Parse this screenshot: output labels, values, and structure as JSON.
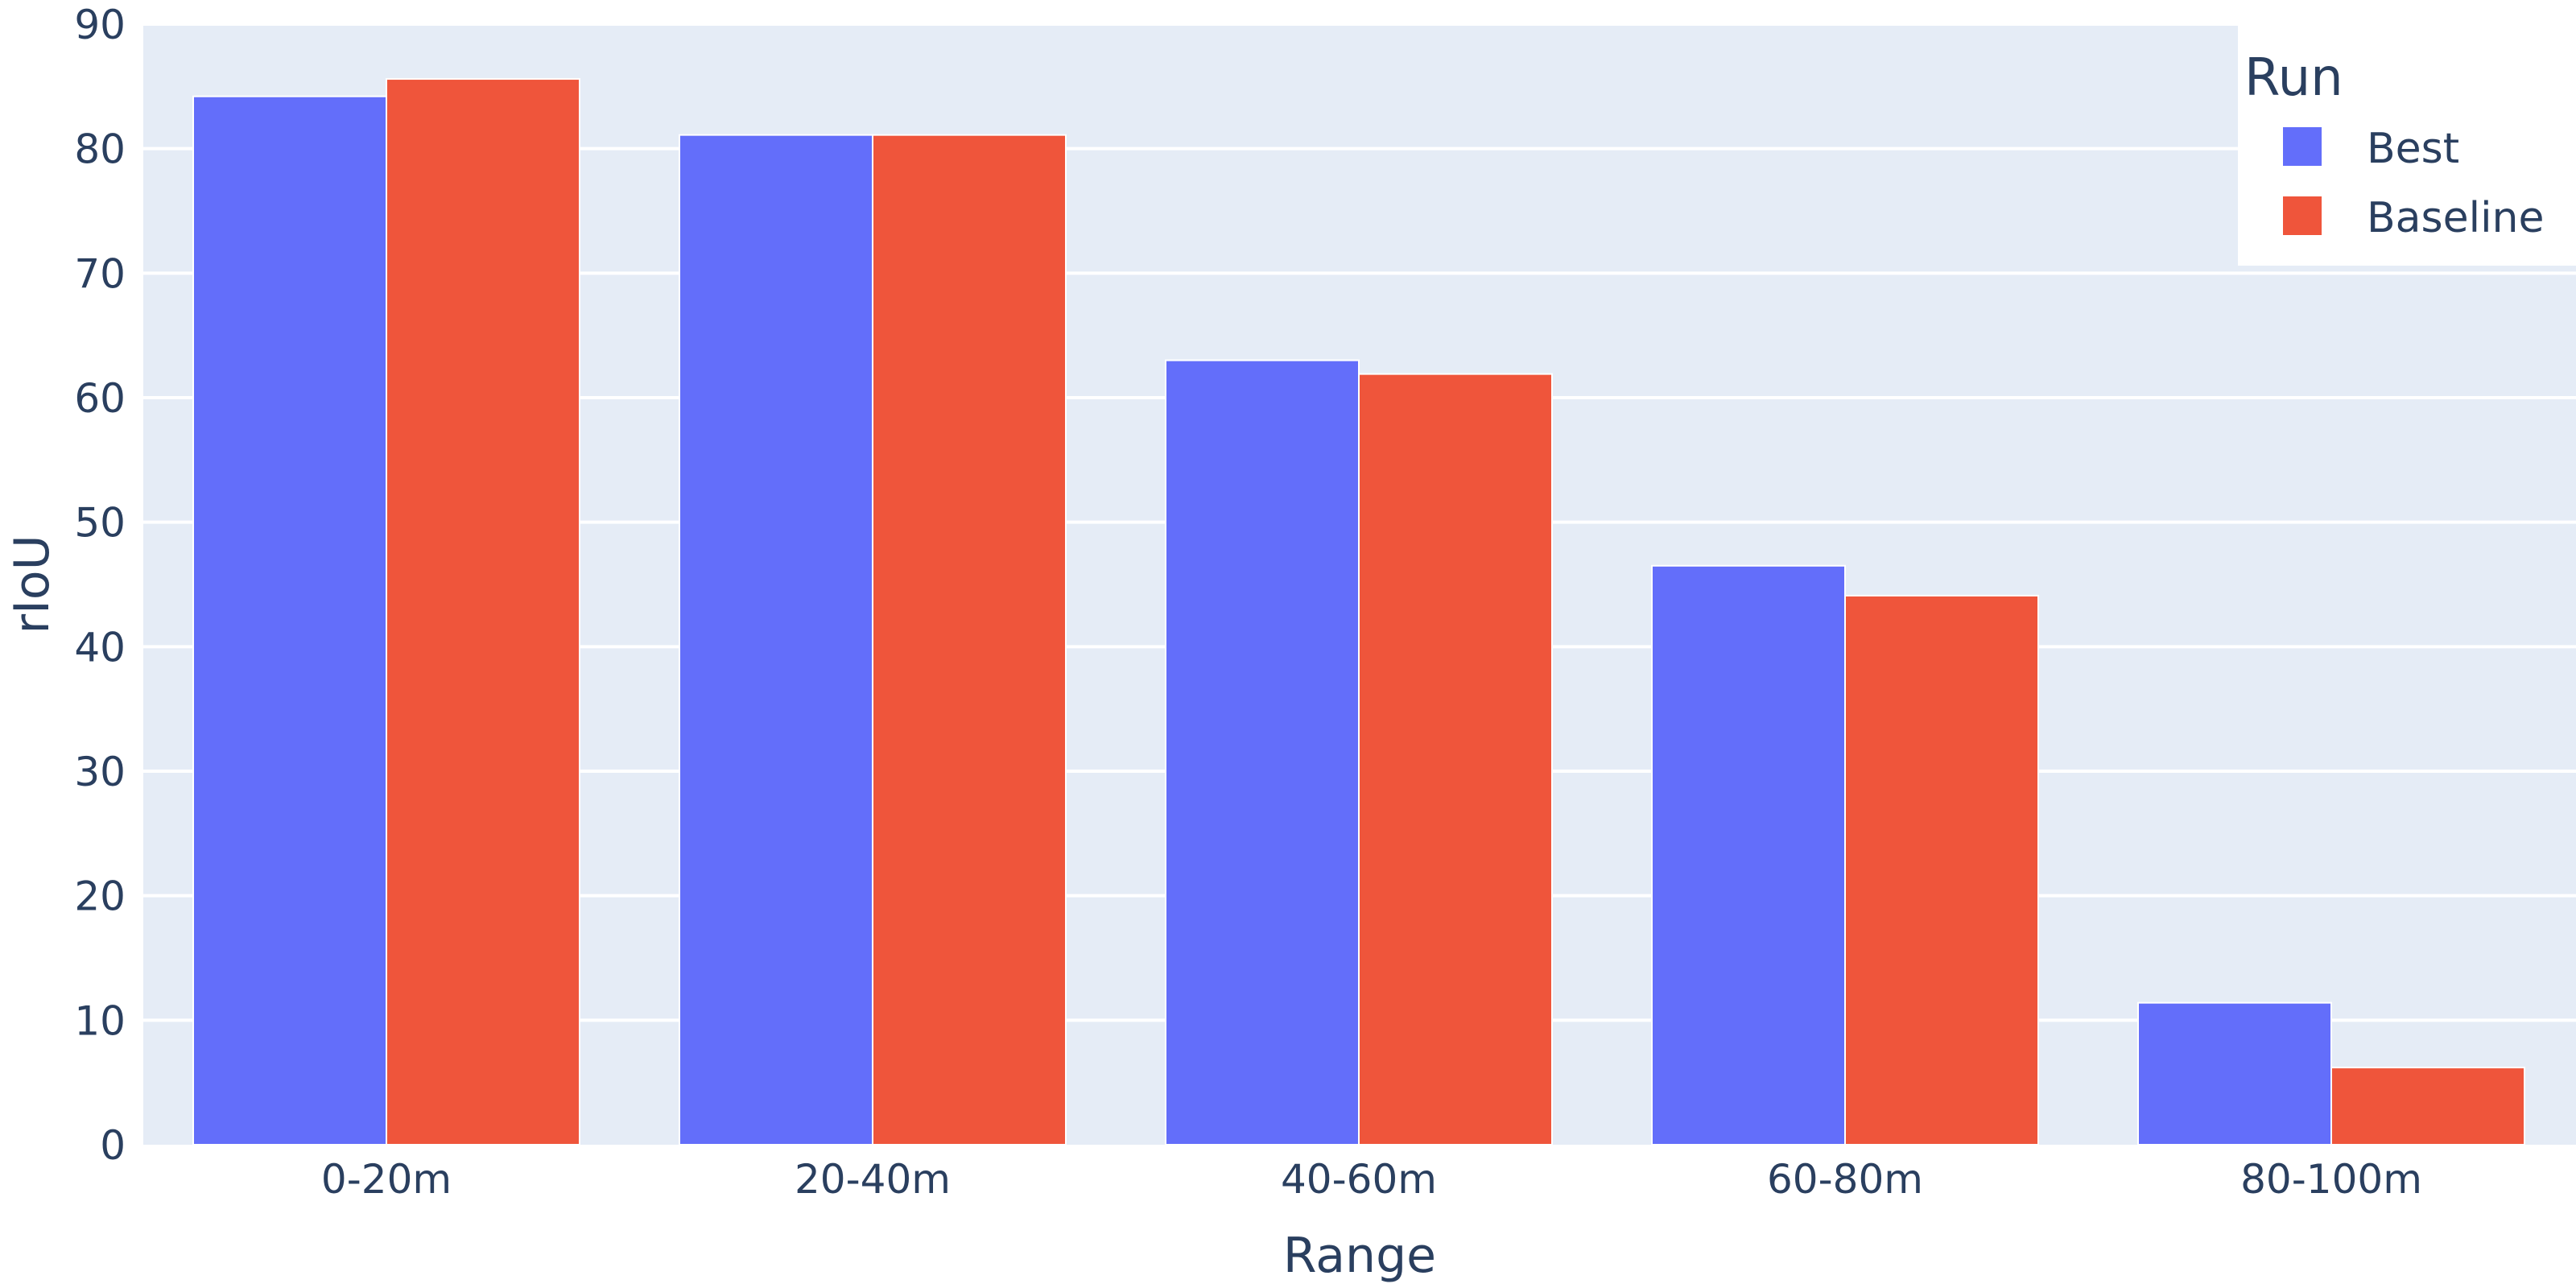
{
  "chart_data": {
    "type": "bar",
    "title": "",
    "xlabel": "Range",
    "ylabel": "rIoU",
    "categories": [
      "0-20m",
      "20-40m",
      "40-60m",
      "60-80m",
      "80-100m"
    ],
    "series": [
      {
        "name": "Best",
        "color": "#636efa",
        "values": [
          84.2,
          81.1,
          63.0,
          46.5,
          11.4
        ]
      },
      {
        "name": "Baseline",
        "color": "#ef553b",
        "values": [
          85.6,
          81.1,
          61.9,
          44.1,
          6.2
        ]
      }
    ],
    "ylim": [
      0,
      90
    ],
    "yticks": [
      0,
      10,
      20,
      30,
      40,
      50,
      60,
      70,
      80,
      90
    ],
    "grid": true,
    "legend": {
      "title": "Run",
      "position": "top-right"
    },
    "colors": {
      "plot_bg": "#e5ecf6",
      "grid": "#ffffff",
      "text": "#2a3f5f"
    }
  }
}
